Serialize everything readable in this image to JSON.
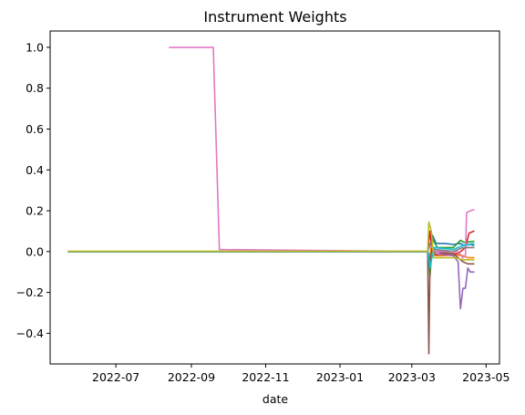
{
  "chart_data": {
    "type": "line",
    "title": "Instrument Weights",
    "xlabel": "date",
    "ylabel": "",
    "x_axis_type": "date",
    "xlim": [
      "2022-05-08",
      "2023-05-12"
    ],
    "ylim": [
      -0.55,
      1.08
    ],
    "grid": false,
    "legend": "none",
    "x_ticks": [
      "2022-07",
      "2022-09",
      "2022-11",
      "2023-01",
      "2023-03",
      "2023-05"
    ],
    "x_tick_dates": [
      "2022-07-01",
      "2022-09-01",
      "2022-11-01",
      "2023-01-01",
      "2023-03-01",
      "2023-05-01"
    ],
    "y_ticks": [
      -0.4,
      -0.2,
      0.0,
      0.2,
      0.4,
      0.6,
      0.8,
      1.0
    ],
    "y_tick_labels": [
      "−0.4",
      "−0.2",
      "0.0",
      "0.2",
      "0.4",
      "0.6",
      "0.8",
      "1.0"
    ],
    "series": [
      {
        "color": "#1f77b4",
        "points": [
          [
            "2022-05-23",
            0
          ],
          [
            "2023-03-14",
            0
          ],
          [
            "2023-03-16",
            -0.05
          ],
          [
            "2023-03-18",
            0.08
          ],
          [
            "2023-03-21",
            0.04
          ],
          [
            "2023-03-28",
            0.04
          ],
          [
            "2023-04-04",
            0.035
          ],
          [
            "2023-04-10",
            0.04
          ],
          [
            "2023-04-13",
            0.03
          ],
          [
            "2023-04-18",
            0.035
          ],
          [
            "2023-04-21",
            0.03
          ]
        ]
      },
      {
        "color": "#ff7f0e",
        "points": [
          [
            "2022-05-23",
            0
          ],
          [
            "2023-03-14",
            0
          ],
          [
            "2023-03-15",
            -0.04
          ],
          [
            "2023-03-17",
            0.02
          ],
          [
            "2023-03-21",
            -0.02
          ],
          [
            "2023-03-28",
            -0.02
          ],
          [
            "2023-04-04",
            -0.015
          ],
          [
            "2023-04-12",
            -0.02
          ],
          [
            "2023-04-16",
            -0.03
          ],
          [
            "2023-04-21",
            -0.03
          ]
        ]
      },
      {
        "color": "#2ca02c",
        "points": [
          [
            "2022-05-23",
            0
          ],
          [
            "2023-03-14",
            0
          ],
          [
            "2023-03-16",
            -0.12
          ],
          [
            "2023-03-18",
            0.06
          ],
          [
            "2023-03-22",
            0.02
          ],
          [
            "2023-04-04",
            0.02
          ],
          [
            "2023-04-10",
            0.055
          ],
          [
            "2023-04-13",
            0.045
          ],
          [
            "2023-04-21",
            0.05
          ]
        ]
      },
      {
        "color": "#d62728",
        "points": [
          [
            "2022-05-23",
            0
          ],
          [
            "2023-03-14",
            0
          ],
          [
            "2023-03-16",
            0.1
          ],
          [
            "2023-03-18",
            -0.02
          ],
          [
            "2023-03-24",
            -0.01
          ],
          [
            "2023-04-08",
            -0.01
          ],
          [
            "2023-04-14",
            0.02
          ],
          [
            "2023-04-17",
            0.09
          ],
          [
            "2023-04-21",
            0.1
          ]
        ]
      },
      {
        "color": "#9467bd",
        "points": [
          [
            "2022-05-23",
            0
          ],
          [
            "2023-03-14",
            0
          ],
          [
            "2023-03-16",
            -0.03
          ],
          [
            "2023-03-20",
            -0.01
          ],
          [
            "2023-04-04",
            -0.02
          ],
          [
            "2023-04-08",
            -0.05
          ],
          [
            "2023-04-10",
            -0.28
          ],
          [
            "2023-04-12",
            -0.18
          ],
          [
            "2023-04-14",
            -0.18
          ],
          [
            "2023-04-16",
            -0.08
          ],
          [
            "2023-04-18",
            -0.1
          ],
          [
            "2023-04-21",
            -0.1
          ]
        ]
      },
      {
        "color": "#8c564b",
        "points": [
          [
            "2022-05-23",
            0
          ],
          [
            "2023-03-14",
            0
          ],
          [
            "2023-03-15",
            -0.5
          ],
          [
            "2023-03-16",
            -0.03
          ],
          [
            "2023-03-20",
            0
          ],
          [
            "2023-04-04",
            -0.01
          ],
          [
            "2023-04-12",
            -0.05
          ],
          [
            "2023-04-16",
            -0.06
          ],
          [
            "2023-04-21",
            -0.06
          ]
        ]
      },
      {
        "color": "#e377c2",
        "points": [
          [
            "2022-08-14",
            1.0
          ],
          [
            "2022-09-19",
            1.0
          ],
          [
            "2022-09-24",
            0.01
          ],
          [
            "2023-03-14",
            0
          ],
          [
            "2023-03-16",
            0.03
          ],
          [
            "2023-03-21",
            0
          ],
          [
            "2023-04-08",
            0
          ],
          [
            "2023-04-12",
            -0.03
          ],
          [
            "2023-04-14",
            -0.02
          ],
          [
            "2023-04-15",
            0.19
          ],
          [
            "2023-04-18",
            0.2
          ],
          [
            "2023-04-21",
            0.205
          ]
        ]
      },
      {
        "color": "#7f7f7f",
        "points": [
          [
            "2022-05-23",
            0
          ],
          [
            "2023-03-14",
            0
          ],
          [
            "2023-03-16",
            0.04
          ],
          [
            "2023-03-20",
            0.01
          ],
          [
            "2023-04-04",
            0.0
          ],
          [
            "2023-04-12",
            0.02
          ],
          [
            "2023-04-21",
            0.02
          ]
        ]
      },
      {
        "color": "#17becf",
        "points": [
          [
            "2022-05-23",
            0
          ],
          [
            "2023-03-14",
            0
          ],
          [
            "2023-03-16",
            -0.08
          ],
          [
            "2023-03-19",
            0.02
          ],
          [
            "2023-04-04",
            0.01
          ],
          [
            "2023-04-12",
            0.03
          ],
          [
            "2023-04-21",
            0.04
          ]
        ]
      },
      {
        "color": "#bcbd22",
        "points": [
          [
            "2022-05-23",
            0.002
          ],
          [
            "2023-03-14",
            0.002
          ],
          [
            "2023-03-15",
            0.145
          ],
          [
            "2023-03-17",
            0.1
          ],
          [
            "2023-03-19",
            -0.03
          ],
          [
            "2023-04-06",
            -0.03
          ],
          [
            "2023-04-12",
            -0.04
          ],
          [
            "2023-04-16",
            -0.04
          ],
          [
            "2023-04-21",
            -0.04
          ]
        ]
      }
    ]
  }
}
